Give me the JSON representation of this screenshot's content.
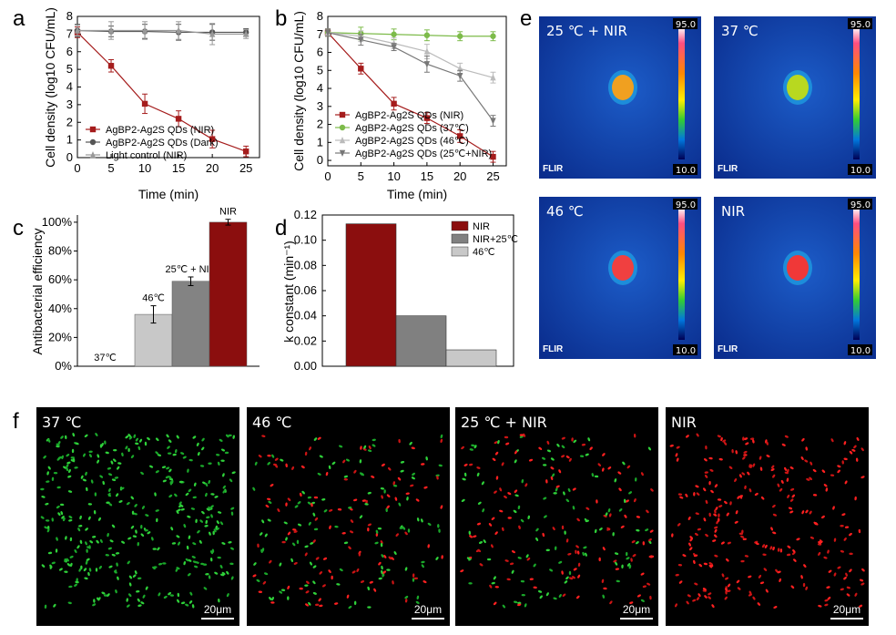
{
  "panel_labels": {
    "a": "a",
    "b": "b",
    "c": "c",
    "d": "d",
    "e": "e",
    "f": "f"
  },
  "chart_data": [
    {
      "panel": "a",
      "type": "line",
      "xlabel": "Time (min)",
      "ylabel": "Cell density (log10 CFU/mL)",
      "xlim": [
        0,
        27
      ],
      "ylim": [
        0,
        8
      ],
      "xticks": [
        0,
        5,
        10,
        15,
        20,
        25
      ],
      "yticks": [
        0,
        1,
        2,
        3,
        4,
        5,
        6,
        7,
        8
      ],
      "x": [
        0,
        5,
        10,
        15,
        20,
        25
      ],
      "series": [
        {
          "name": "AgBP2-Ag2S QDs (NIR)",
          "color": "#a51c1c",
          "marker": "square",
          "values": [
            7.1,
            5.2,
            3.05,
            2.2,
            1.05,
            0.35
          ],
          "errors": [
            0.3,
            0.35,
            0.55,
            0.45,
            0.5,
            0.3
          ]
        },
        {
          "name": "AgBP2-Ag2S QDs (Dark)",
          "color": "#555555",
          "marker": "circle",
          "values": [
            7.2,
            7.15,
            7.15,
            7.1,
            7.1,
            7.1
          ],
          "errors": [
            0.35,
            0.3,
            0.4,
            0.45,
            0.45,
            0.2
          ]
        },
        {
          "name": "Light control (NIR)",
          "color": "#999999",
          "marker": "triangle",
          "values": [
            7.2,
            7.2,
            7.2,
            7.2,
            7.0,
            7.0
          ],
          "errors": [
            0.3,
            0.5,
            0.5,
            0.5,
            0.6,
            0.25
          ]
        }
      ],
      "legend": "bottom-left"
    },
    {
      "panel": "b",
      "type": "line",
      "xlabel": "Time (min)",
      "ylabel": "Cell density (log10 CFU/mL)",
      "xlim": [
        0,
        27
      ],
      "ylim": [
        -0.3,
        8
      ],
      "xticks": [
        0,
        5,
        10,
        15,
        20,
        25
      ],
      "yticks": [
        0,
        1,
        2,
        3,
        4,
        5,
        6,
        7,
        8
      ],
      "x": [
        0,
        5,
        10,
        15,
        20,
        25
      ],
      "series": [
        {
          "name": "AgBP2-Ag2S QDs (NIR)",
          "color": "#a51c1c",
          "marker": "square",
          "values": [
            7.1,
            5.1,
            3.15,
            2.35,
            1.35,
            0.2
          ],
          "errors": [
            0.2,
            0.3,
            0.35,
            0.3,
            0.35,
            0.3
          ]
        },
        {
          "name": "AgBP2-Ag2S QDs (37℃)",
          "color": "#7dbb4a",
          "marker": "circle",
          "values": [
            7.1,
            7.05,
            7.0,
            6.95,
            6.9,
            6.9
          ],
          "errors": [
            0.2,
            0.35,
            0.3,
            0.3,
            0.25,
            0.25
          ]
        },
        {
          "name": "AgBP2-Ag2S QDs (46℃)",
          "color": "#bbbbbb",
          "marker": "triangle",
          "values": [
            7.1,
            6.9,
            6.5,
            6.05,
            5.1,
            4.6
          ],
          "errors": [
            0.2,
            0.3,
            0.3,
            0.4,
            0.3,
            0.3
          ]
        },
        {
          "name": "AgBP2-Ag2S QDs (25℃+NIR)",
          "color": "#777777",
          "marker": "triangle-down",
          "values": [
            7.1,
            6.7,
            6.3,
            5.35,
            4.7,
            2.2
          ],
          "errors": [
            0.2,
            0.3,
            0.2,
            0.45,
            0.3,
            0.3
          ]
        }
      ],
      "legend": "bottom-left"
    },
    {
      "panel": "c",
      "type": "bar",
      "ylabel": "Antibacterial efficiency",
      "ylim": [
        0,
        105
      ],
      "yticks": [
        "0%",
        "20%",
        "40%",
        "60%",
        "80%",
        "100%"
      ],
      "categories": [
        "37℃",
        "46℃",
        "25℃ + NIR",
        "NIR"
      ],
      "values": [
        0,
        36,
        59,
        100
      ],
      "errors": [
        0,
        6,
        3,
        2
      ],
      "colors": [
        "#e0e0e0",
        "#c8c8c8",
        "#838383",
        "#8b0e0e"
      ]
    },
    {
      "panel": "d",
      "type": "bar",
      "ylabel": "k constant (min⁻¹)",
      "ylim": [
        0,
        0.12
      ],
      "yticks": [
        "0.00",
        "0.02",
        "0.04",
        "0.06",
        "0.08",
        "0.10",
        "0.12"
      ],
      "categories": [
        "NIR",
        "NIR+25℃",
        "46℃"
      ],
      "values": [
        0.113,
        0.04,
        0.013
      ],
      "colors": [
        "#8b0e0e",
        "#808080",
        "#c8c8c8"
      ],
      "legend": "top-right"
    }
  ],
  "thermal_images": [
    {
      "title": "25 ℃ + NIR",
      "scale_max": "95.0",
      "scale_min": "10.0",
      "logo": "FLIR",
      "spot_color": "#f0a020"
    },
    {
      "title": "37 ℃",
      "scale_max": "95.0",
      "scale_min": "10.0",
      "logo": "FLIR",
      "spot_color": "#b8d820"
    },
    {
      "title": "46 ℃",
      "scale_max": "95.0",
      "scale_min": "10.0",
      "logo": "FLIR",
      "spot_color": "#f04040"
    },
    {
      "title": "NIR",
      "scale_max": "95.0",
      "scale_min": "10.0",
      "logo": "FLIR",
      "spot_color": "#f03838"
    }
  ],
  "micrographs": [
    {
      "title": "37 ℃",
      "scale_bar": "20μm",
      "green_fraction": 1.0,
      "density": 360
    },
    {
      "title": "46 ℃",
      "scale_bar": "20μm",
      "green_fraction": 0.55,
      "density": 230
    },
    {
      "title": "25 ℃ + NIR",
      "scale_bar": "20μm",
      "green_fraction": 0.45,
      "density": 230
    },
    {
      "title": "NIR",
      "scale_bar": "20μm",
      "green_fraction": 0.0,
      "density": 260
    }
  ]
}
